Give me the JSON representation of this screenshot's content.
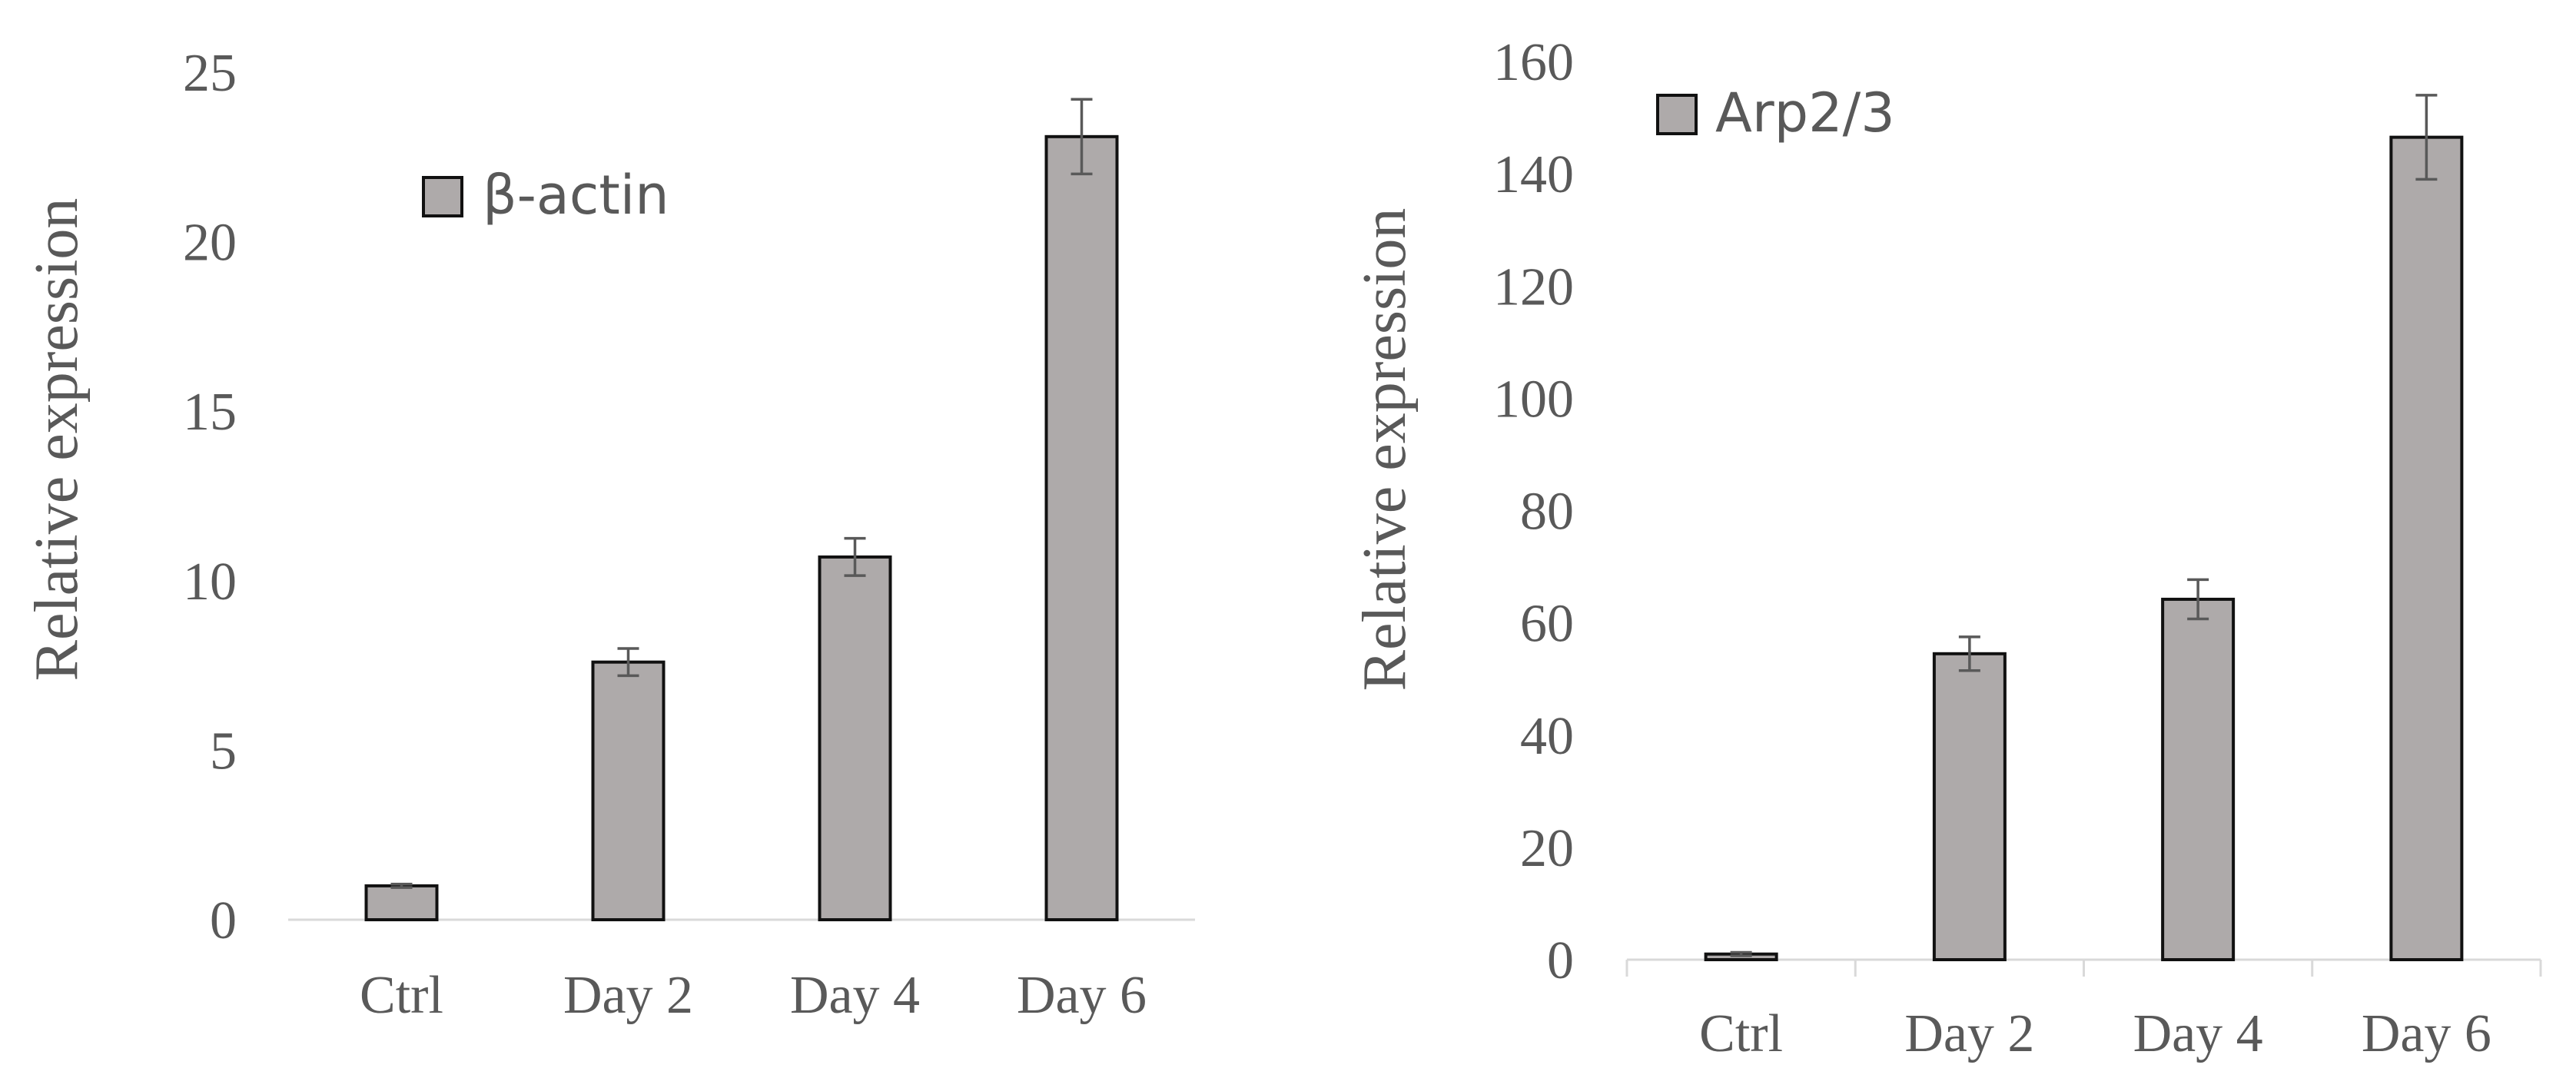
{
  "chart_data": [
    {
      "type": "bar",
      "categories": [
        "Ctrl",
        "Day 2",
        "Day 4",
        "Day 6"
      ],
      "series": [
        {
          "name": "β-actin",
          "values": [
            1.0,
            7.6,
            10.7,
            23.1
          ],
          "errors": [
            0.05,
            0.4,
            0.55,
            1.1
          ]
        }
      ],
      "ylabel": "Relative expression",
      "ylim": [
        0,
        25
      ],
      "yticks": [
        0,
        5,
        10,
        15,
        20,
        25
      ],
      "grid": false,
      "legend_position": "top-left",
      "colors": {
        "bar_fill": "#aeaaaa",
        "bar_stroke": "#111111",
        "text": "#595959",
        "axis": "#d9d9d9"
      }
    },
    {
      "type": "bar",
      "categories": [
        "Ctrl",
        "Day 2",
        "Day 4",
        "Day 6"
      ],
      "series": [
        {
          "name": "Arp2/3",
          "values": [
            1.0,
            54.5,
            64.2,
            146.5
          ],
          "errors": [
            0.3,
            3.0,
            3.5,
            7.5
          ]
        }
      ],
      "ylabel": "Relative expression",
      "ylim": [
        0,
        160
      ],
      "yticks": [
        0,
        20,
        40,
        60,
        80,
        100,
        120,
        140,
        160
      ],
      "grid": false,
      "legend_position": "top-left",
      "colors": {
        "bar_fill": "#aeaaaa",
        "bar_stroke": "#111111",
        "text": "#595959",
        "axis": "#d9d9d9"
      }
    }
  ]
}
